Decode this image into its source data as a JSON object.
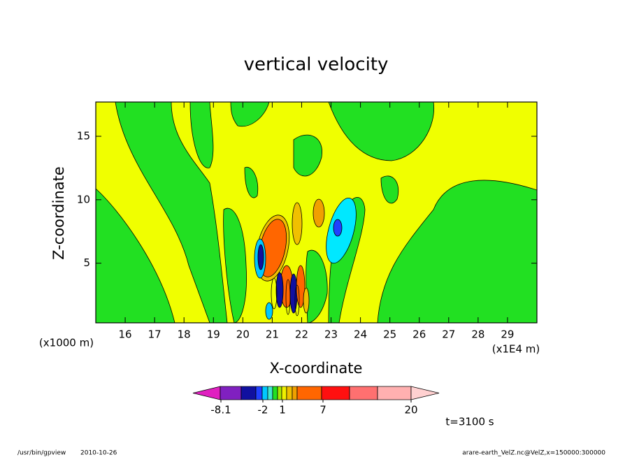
{
  "chart_data": {
    "type": "contour",
    "title": "vertical velocity",
    "x_label": "X-coordinate",
    "y_label": "Z-coordinate",
    "x_unit": "(x1E4 m)",
    "y_unit": "(x1000 m)",
    "xlim": [
      15,
      30
    ],
    "xticks": [
      16,
      17,
      18,
      19,
      20,
      21,
      22,
      23,
      24,
      25,
      26,
      27,
      28,
      29
    ],
    "ylim": [
      0.3,
      17.7
    ],
    "yticks": [
      5,
      10,
      15
    ],
    "colorbar": {
      "colors": [
        "#e020c0",
        "#8020c0",
        "#1010a0",
        "#2040ff",
        "#00c8ff",
        "#40e8d0",
        "#22e022",
        "#a8e800",
        "#f0f000",
        "#f0c000",
        "#f0a000",
        "#ff6600",
        "#ff1010",
        "#ff7070",
        "#ffb0b0",
        "#ffd0d0"
      ],
      "ticks": [
        -8.1,
        -2,
        1,
        7,
        20
      ]
    },
    "time_label": "t=3100 s",
    "footer_program": "/usr/bin/gpview",
    "footer_date": "2010-10-26",
    "footer_source": "arare-earth_VelZ.nc@VelZ,x=150000:300000"
  }
}
